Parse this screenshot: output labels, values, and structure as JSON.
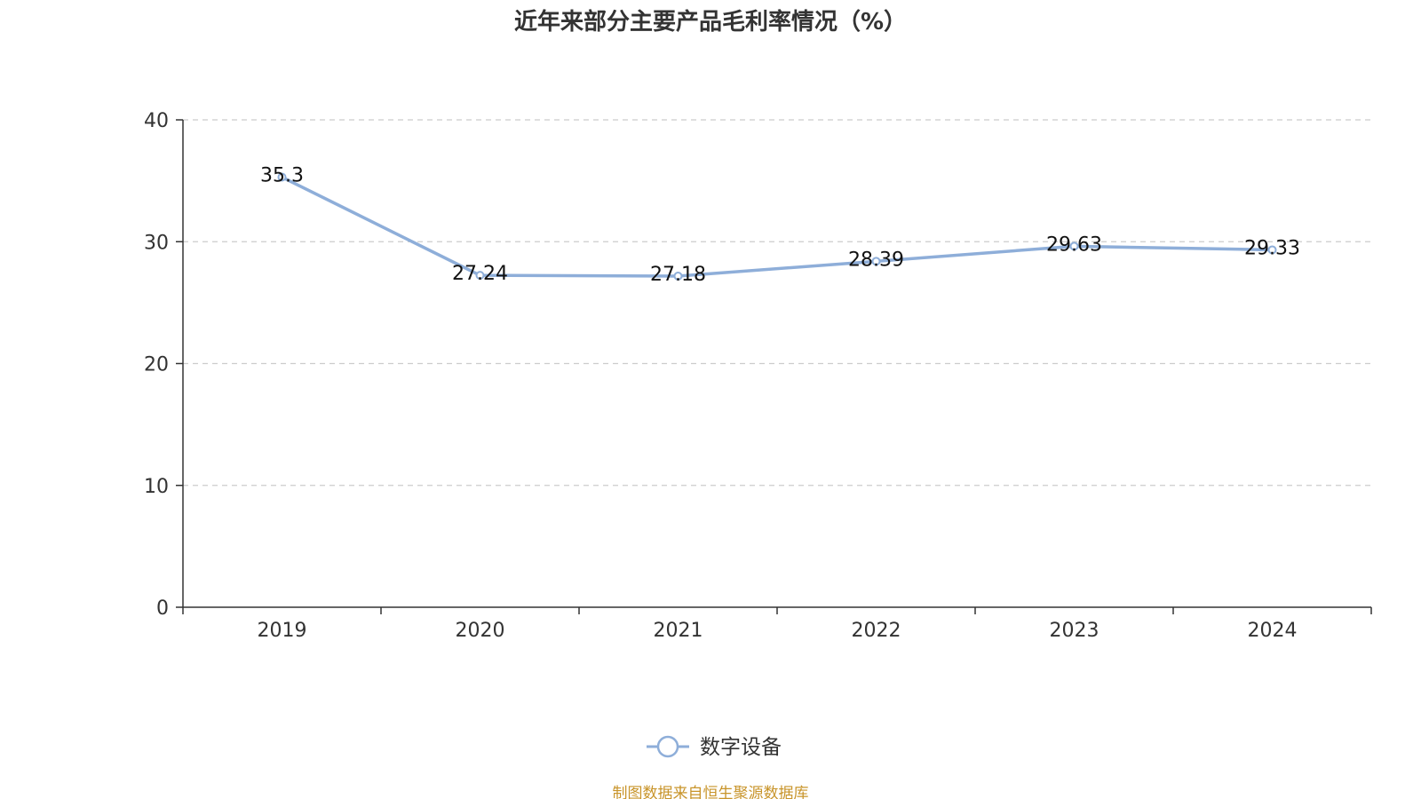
{
  "chart_data": {
    "type": "line",
    "title": "近年来部分主要产品毛利率情况（%）",
    "xlabel": "",
    "ylabel": "",
    "categories": [
      "2019",
      "2020",
      "2021",
      "2022",
      "2023",
      "2024"
    ],
    "series": [
      {
        "name": "数字设备",
        "values": [
          35.3,
          27.24,
          27.18,
          28.39,
          29.63,
          29.33
        ],
        "labels": [
          "35.3",
          "27.24",
          "27.18",
          "28.39",
          "29.63",
          "29.33"
        ],
        "color": "#8eaed9"
      }
    ],
    "ylim": [
      0,
      40
    ],
    "yticks": [
      0,
      10,
      20,
      30,
      40
    ],
    "ytick_labels": [
      "0",
      "10",
      "20",
      "30",
      "40"
    ],
    "grid": "horizontal dashed",
    "legend_position": "bottom-center",
    "source": "制图数据来自恒生聚源数据库"
  },
  "colors": {
    "line": "#8eaed9",
    "axis": "#333333",
    "grid": "#cccccc",
    "source": "#c8942a",
    "text": "#333333"
  }
}
